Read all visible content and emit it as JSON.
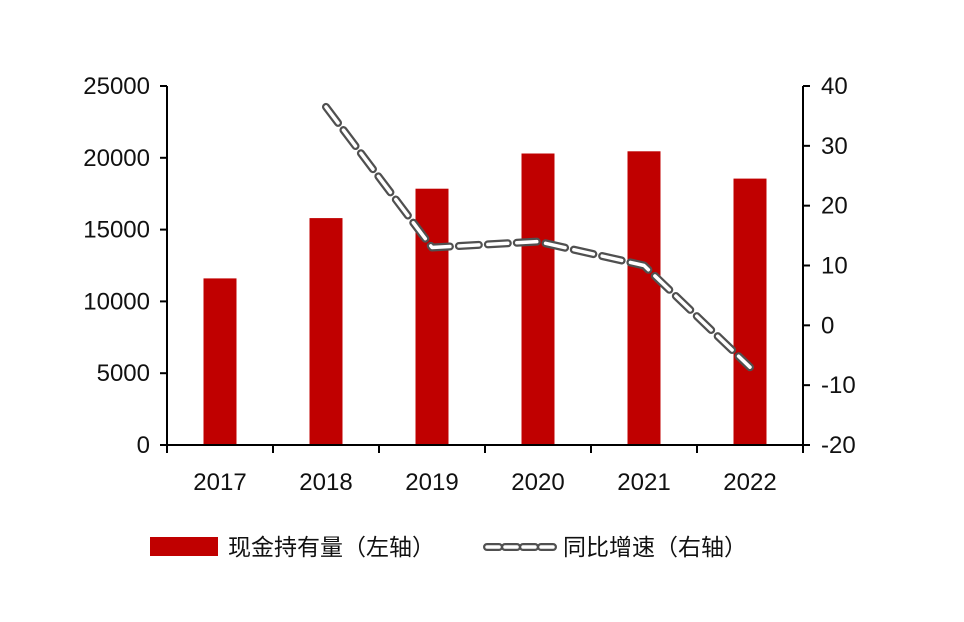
{
  "chart_data": {
    "type": "bar",
    "categories": [
      "2017",
      "2018",
      "2019",
      "2020",
      "2021",
      "2022"
    ],
    "series": [
      {
        "name": "现金持有量（左轴）",
        "type": "bar",
        "axis": "left",
        "color": "#C00000",
        "values": [
          11600,
          15800,
          17850,
          20300,
          20450,
          18550
        ]
      },
      {
        "name": "同比增速（右轴）",
        "type": "line",
        "axis": "right",
        "style": "dashed",
        "color": "#808080",
        "values": [
          null,
          36.5,
          13,
          14,
          10,
          -7
        ]
      }
    ],
    "y_left": {
      "min": 0,
      "max": 25000,
      "ticks": [
        "0",
        "5000",
        "10000",
        "15000",
        "20000",
        "25000"
      ]
    },
    "y_right": {
      "min": -20,
      "max": 40,
      "ticks": [
        "-20",
        "-10",
        "0",
        "10",
        "20",
        "30",
        "40"
      ]
    },
    "grid": false,
    "legend_position": "bottom"
  }
}
